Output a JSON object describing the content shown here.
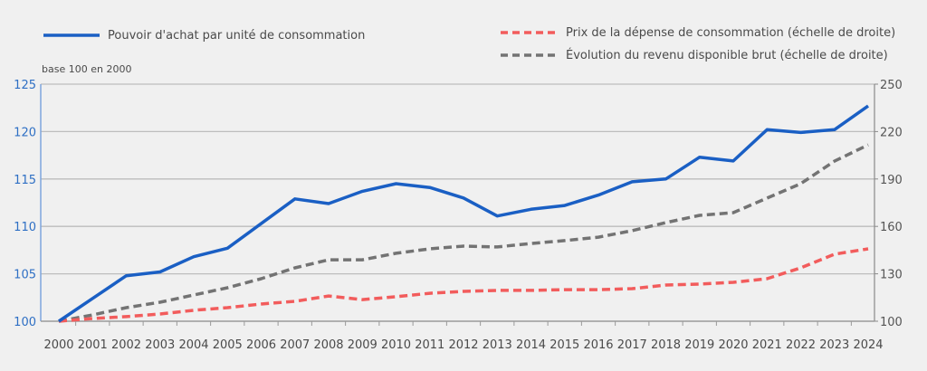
{
  "chart_data": {
    "type": "line",
    "title": "",
    "unit_note": "base 100 en 2000",
    "x": [
      "2000",
      "2001",
      "2002",
      "2003",
      "2004",
      "2005",
      "2006",
      "2007",
      "2008",
      "2009",
      "2010",
      "2011",
      "2012",
      "2013",
      "2014",
      "2015",
      "2016",
      "2017",
      "2018",
      "2019",
      "2020",
      "2021",
      "2022",
      "2023",
      "2024"
    ],
    "left_axis": {
      "ylim": [
        100,
        125
      ],
      "ticks": [
        "100",
        "105",
        "110",
        "115",
        "120",
        "125"
      ],
      "color": "#2e6fc4"
    },
    "right_axis": {
      "ylim": [
        100,
        250
      ],
      "ticks": [
        "100",
        "130",
        "160",
        "190",
        "220",
        "250"
      ],
      "color": "#555555"
    },
    "grid": true,
    "series": [
      {
        "name": "Pouvoir d'achat par unité de consommation",
        "axis": "left",
        "style": "solid",
        "color": "#1a5fc4",
        "values": [
          100,
          102.4,
          104.8,
          105.2,
          106.8,
          107.7,
          110.3,
          112.9,
          112.4,
          113.7,
          114.5,
          114.1,
          113.0,
          111.1,
          111.8,
          112.2,
          113.3,
          114.7,
          115.0,
          117.3,
          116.9,
          120.2,
          119.9,
          120.2,
          122.7
        ]
      },
      {
        "name": "Prix de la dépense de consommation (échelle de droite)",
        "axis": "right",
        "style": "dashed",
        "color": "#f25c5c",
        "values": [
          100,
          101.7,
          102.9,
          104.6,
          106.9,
          108.6,
          110.9,
          112.6,
          116.0,
          113.7,
          115.5,
          117.7,
          118.9,
          119.5,
          119.5,
          120.0,
          120.0,
          120.6,
          122.9,
          123.5,
          124.6,
          126.9,
          133.8,
          142.4,
          145.8
        ]
      },
      {
        "name": "Évolution du revenu disponible brut (échelle de droite)",
        "axis": "right",
        "style": "dashed",
        "color": "#737373",
        "values": [
          100,
          104.0,
          108.6,
          112.0,
          116.6,
          121.2,
          126.9,
          133.8,
          138.9,
          138.9,
          143.0,
          145.8,
          147.5,
          147.0,
          149.2,
          151.0,
          153.2,
          157.3,
          162.4,
          167.0,
          168.7,
          177.9,
          187.0,
          201.3,
          211.6
        ]
      }
    ],
    "legend": [
      {
        "label": "Pouvoir d'achat par unité de consommation",
        "position": "top-left"
      },
      {
        "label": "Prix de la dépense de consommation (échelle de droite)",
        "position": "top-right"
      },
      {
        "label": "Évolution du revenu disponible brut (échelle de droite)",
        "position": "top-right"
      }
    ]
  }
}
